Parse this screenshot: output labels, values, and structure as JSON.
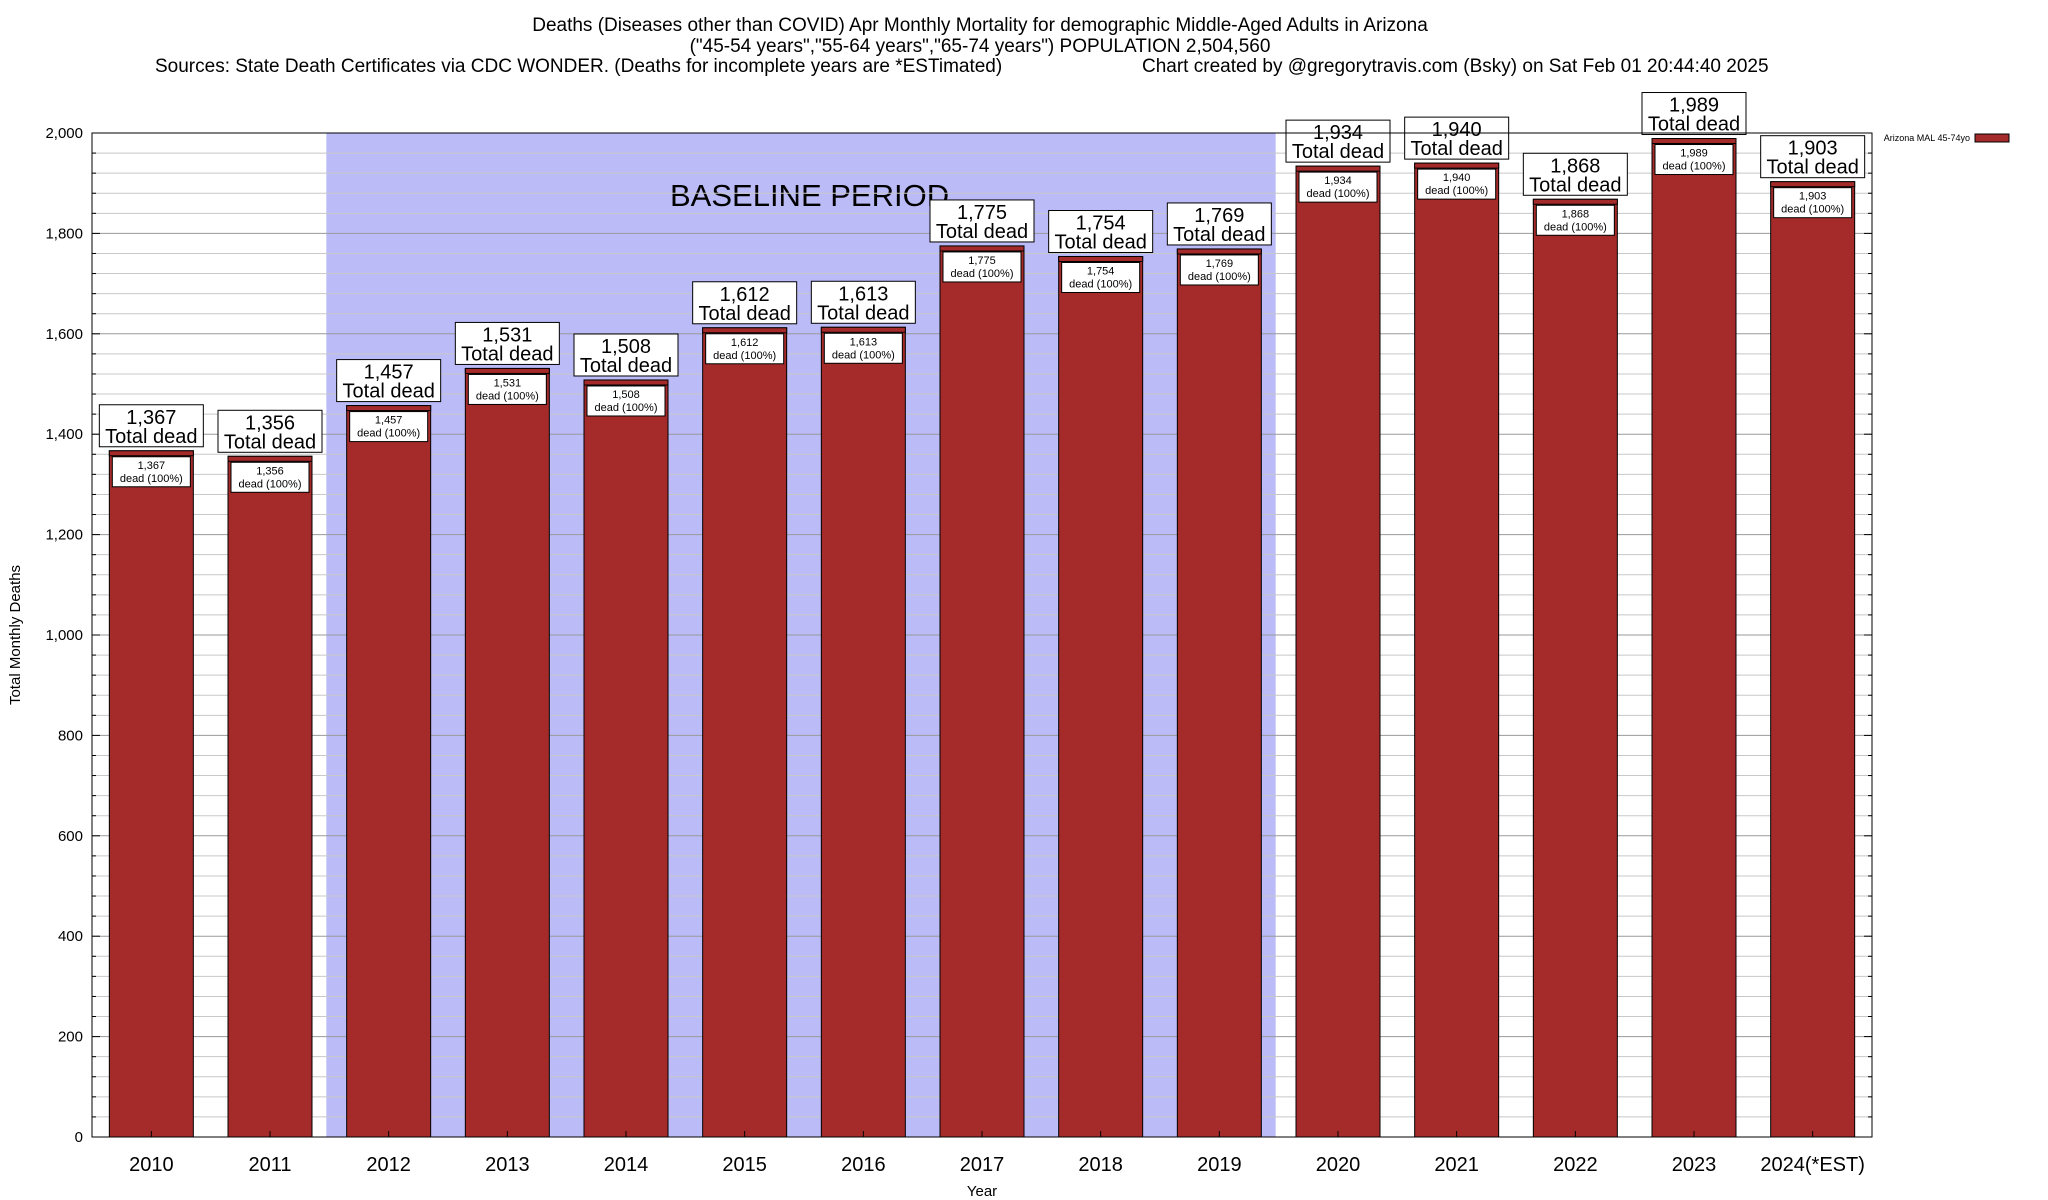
{
  "header": {
    "title_line1": "Deaths (Diseases other than COVID) Apr Monthly Mortality for demographic Middle-Aged Adults in Arizona",
    "title_line2": "(\"45-54 years\",\"55-64 years\",\"65-74 years\") POPULATION 2,504,560",
    "sources": "Sources: State Death Certificates via CDC WONDER. (Deaths for incomplete years are *ESTimated)",
    "credit": "Chart created by @gregorytravis.com (Bsky) on Sat Feb 01 20:44:40 2025"
  },
  "chart_data": {
    "type": "bar",
    "xlabel": "Year",
    "ylabel": "Total Monthly Deaths",
    "ylim": [
      0,
      2000
    ],
    "y_ticks": [
      0,
      200,
      400,
      600,
      800,
      1000,
      1200,
      1400,
      1600,
      1800,
      2000
    ],
    "y_tick_labels": [
      "0",
      "200",
      "400",
      "600",
      "800",
      "1,000",
      "1,200",
      "1,400",
      "1,600",
      "1,800",
      "2,000"
    ],
    "y_minor_step": 40,
    "grid": true,
    "categories": [
      "2010",
      "2011",
      "2012",
      "2013",
      "2014",
      "2015",
      "2016",
      "2017",
      "2018",
      "2019",
      "2020",
      "2021",
      "2022",
      "2023",
      "2024(*EST)"
    ],
    "series": [
      {
        "name": "Arizona MAL 45-74yo",
        "color": "#a52a2a",
        "values": [
          1367,
          1356,
          1457,
          1531,
          1508,
          1612,
          1613,
          1775,
          1754,
          1769,
          1934,
          1940,
          1868,
          1989,
          1903
        ]
      }
    ],
    "total_labels": [
      "1,367",
      "1,356",
      "1,457",
      "1,531",
      "1,508",
      "1,612",
      "1,613",
      "1,775",
      "1,754",
      "1,769",
      "1,934",
      "1,940",
      "1,868",
      "1,989",
      "1,903"
    ],
    "total_suffix": "Total dead",
    "inner_suffix": "dead (100%)",
    "baseline": {
      "label": "BASELINE PERIOD",
      "start": "2012",
      "end": "2019",
      "color": "#bbbbf8"
    },
    "legend": {
      "position": "top-right",
      "label": "Arizona MAL 45-74yo"
    }
  }
}
